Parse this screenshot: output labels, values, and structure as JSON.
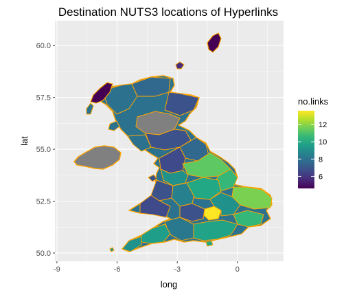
{
  "chart_data": {
    "type": "choropleth",
    "title": "Destination NUTS3 locations of Hyperlinks",
    "xlabel": "long",
    "ylabel": "lat",
    "xlim": [
      -9.1,
      2.3
    ],
    "ylim": [
      49.6,
      61.2
    ],
    "x_ticks": [
      -9,
      -6,
      -3,
      0
    ],
    "x_tick_labels": [
      "-9",
      "-6",
      "-3",
      "0"
    ],
    "y_ticks": [
      50.0,
      52.5,
      55.0,
      57.5,
      60.0
    ],
    "y_tick_labels": [
      "50.0",
      "52.5",
      "55.0",
      "57.5",
      "60.0"
    ],
    "grid": true,
    "panel_background": "#ebebeb",
    "grid_color": "#ffffff",
    "border_color": "#ffa500",
    "na_color": "#808080",
    "legend": {
      "title": "no.links",
      "placement": "right",
      "range": [
        4.6,
        13.6
      ],
      "breaks": [
        6,
        8,
        10,
        12
      ],
      "break_labels": [
        "6",
        "8",
        "10",
        "12"
      ],
      "palette": "viridis"
    },
    "regions": [
      {
        "lon": -6.6,
        "lat": 58.1,
        "value": 5
      },
      {
        "lon": -5.9,
        "lat": 57.1,
        "value": 9
      },
      {
        "lon": -4.6,
        "lat": 57.6,
        "value": 8
      },
      {
        "lon": -3.6,
        "lat": 58.3,
        "value": 9
      },
      {
        "lon": -3.2,
        "lat": 57.4,
        "value": 9
      },
      {
        "lon": -2.3,
        "lat": 57.2,
        "value": 8
      },
      {
        "lon": -2.9,
        "lat": 56.7,
        "value": 9
      },
      {
        "lon": -4.6,
        "lat": 56.3,
        "value": 9
      },
      {
        "lon": -3.8,
        "lat": 55.8,
        "value": null
      },
      {
        "lon": -4.6,
        "lat": 55.2,
        "value": 9
      },
      {
        "lon": -3.0,
        "lat": 55.5,
        "value": 8
      },
      {
        "lon": -1.1,
        "lat": 60.4,
        "value": 5
      },
      {
        "lon": -3.0,
        "lat": 59.0,
        "value": 7
      },
      {
        "lon": -6.9,
        "lat": 54.6,
        "value": null
      },
      {
        "lon": -2.0,
        "lat": 54.8,
        "value": 8
      },
      {
        "lon": -1.5,
        "lat": 54.3,
        "value": 9
      },
      {
        "lon": -2.5,
        "lat": 53.7,
        "value": 10
      },
      {
        "lon": -1.5,
        "lat": 53.5,
        "value": 11
      },
      {
        "lon": -0.3,
        "lat": 53.4,
        "value": 10
      },
      {
        "lon": -3.6,
        "lat": 52.6,
        "value": 7
      },
      {
        "lon": -2.2,
        "lat": 52.4,
        "value": 10
      },
      {
        "lon": -1.0,
        "lat": 52.5,
        "value": 9
      },
      {
        "lon": 0.9,
        "lat": 52.6,
        "value": 10
      },
      {
        "lon": 1.0,
        "lat": 52.0,
        "value": 11
      },
      {
        "lon": -1.3,
        "lat": 51.8,
        "value": 13
      },
      {
        "lon": -0.7,
        "lat": 51.5,
        "value": 9
      },
      {
        "lon": 0.4,
        "lat": 51.3,
        "value": 10
      },
      {
        "lon": -2.6,
        "lat": 51.2,
        "value": 9
      },
      {
        "lon": -4.3,
        "lat": 50.6,
        "value": 9
      },
      {
        "lon": -5.2,
        "lat": 50.3,
        "value": 10
      },
      {
        "lon": -1.6,
        "lat": 50.9,
        "value": 10
      }
    ]
  }
}
